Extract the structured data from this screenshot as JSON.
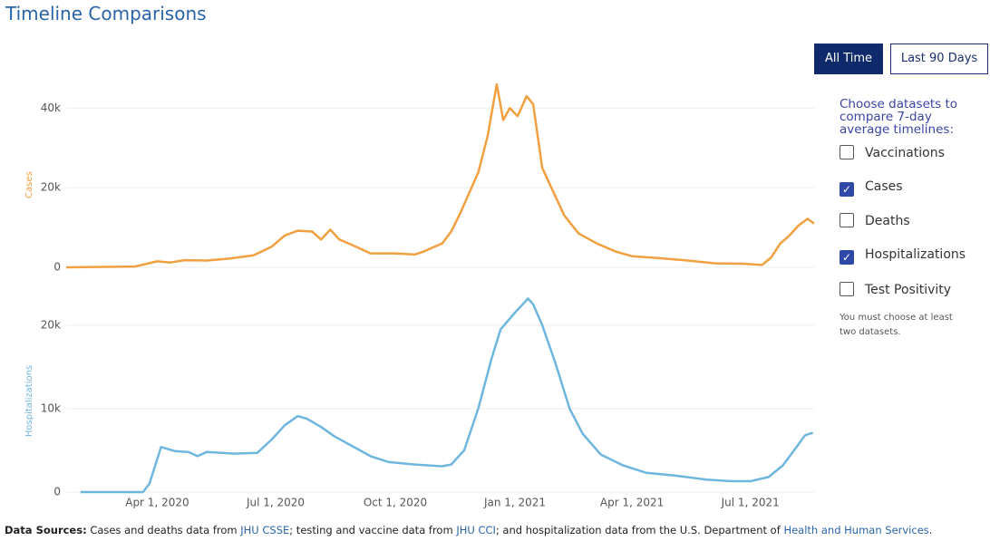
{
  "header": {
    "title": "Timeline Comparisons"
  },
  "buttons": [
    {
      "label": "All Time",
      "active": true
    },
    {
      "label": "Last 90 Days",
      "active": false
    }
  ],
  "panel": {
    "prompt": "Choose datasets to compare 7-day average timelines:",
    "options": [
      {
        "label": "Vaccinations",
        "checked": false
      },
      {
        "label": "Cases",
        "checked": true
      },
      {
        "label": "Deaths",
        "checked": false
      },
      {
        "label": "Hospitalizations",
        "checked": true
      },
      {
        "label": "Test Positivity",
        "checked": false
      }
    ],
    "note": "You must choose at least two datasets."
  },
  "footer": {
    "label": "Data Sources:",
    "parts": [
      {
        "text": " Cases and deaths data from ",
        "link": false
      },
      {
        "text": "JHU CSSE",
        "link": true
      },
      {
        "text": "; testing and vaccine data from ",
        "link": false
      },
      {
        "text": "JHU CCI",
        "link": true
      },
      {
        "text": "; and hospitalization data from the U.S. Department of ",
        "link": false
      },
      {
        "text": "Health and Human Services",
        "link": true
      },
      {
        "text": ".",
        "link": false
      }
    ]
  },
  "chart_data": [
    {
      "type": "line",
      "y_label": "Cases",
      "color": "#f0a040",
      "grid": true,
      "xlim": [
        "2020-01-22",
        "2021-08-19"
      ],
      "ylim": [
        0,
        46000
      ],
      "yticks": [
        0,
        {
          "value": 20000,
          "label": "20k"
        },
        {
          "value": 40000,
          "label": "40k"
        }
      ],
      "x": [
        "2020-01-22",
        "2020-03-15",
        "2020-04-01",
        "2020-04-11",
        "2020-04-22",
        "2020-05-09",
        "2020-05-27",
        "2020-06-14",
        "2020-06-28",
        "2020-07-08",
        "2020-07-18",
        "2020-07-29",
        "2020-08-05",
        "2020-08-12",
        "2020-08-19",
        "2020-09-02",
        "2020-09-12",
        "2020-10-01",
        "2020-10-16",
        "2020-10-23",
        "2020-10-30",
        "2020-11-06",
        "2020-11-13",
        "2020-11-20",
        "2020-12-04",
        "2020-12-11",
        "2020-12-18",
        "2020-12-23",
        "2020-12-28",
        "2021-01-03",
        "2021-01-10",
        "2021-01-15",
        "2021-01-22",
        "2021-01-29",
        "2021-02-08",
        "2021-02-19",
        "2021-03-05",
        "2021-03-19",
        "2021-04-01",
        "2021-04-22",
        "2021-05-14",
        "2021-06-04",
        "2021-06-25",
        "2021-07-10",
        "2021-07-17",
        "2021-07-24",
        "2021-07-31",
        "2021-08-07",
        "2021-08-14",
        "2021-08-19"
      ],
      "series": [
        {
          "name": "Cases",
          "values": [
            0,
            200,
            1500,
            1200,
            1800,
            1700,
            2200,
            3000,
            5200,
            8000,
            9200,
            9000,
            7000,
            9500,
            7000,
            5000,
            3500,
            3500,
            3200,
            4000,
            5000,
            6000,
            9000,
            13600,
            24000,
            33000,
            46000,
            37000,
            40000,
            38000,
            43000,
            41000,
            25000,
            20000,
            13000,
            8500,
            6000,
            4000,
            2800,
            2300,
            1700,
            1000,
            900,
            600,
            2500,
            6000,
            8000,
            10500,
            12200,
            11000
          ]
        }
      ]
    },
    {
      "type": "line",
      "y_label": "Hospitalizations",
      "color": "#6fb6de",
      "grid": true,
      "xlim": [
        "2020-01-22",
        "2021-08-19"
      ],
      "ylim": [
        0,
        24000
      ],
      "yticks": [
        0,
        {
          "value": 10000,
          "label": "10k"
        },
        {
          "value": 20000,
          "label": "20k"
        }
      ],
      "xticks": [
        {
          "value": "2020-04-01",
          "label": "Apr 1, 2020"
        },
        {
          "value": "2020-07-01",
          "label": "Jul 1, 2020"
        },
        {
          "value": "2020-10-01",
          "label": "Oct 1, 2020"
        },
        {
          "value": "2021-01-01",
          "label": "Jan 1, 2021"
        },
        {
          "value": "2021-04-01",
          "label": "Apr 1, 2021"
        },
        {
          "value": "2021-07-01",
          "label": "Jul 1, 2021"
        }
      ],
      "x": [
        "2020-02-02",
        "2020-03-21",
        "2020-03-26",
        "2020-04-04",
        "2020-04-15",
        "2020-04-25",
        "2020-05-02",
        "2020-05-09",
        "2020-05-30",
        "2020-06-17",
        "2020-06-28",
        "2020-07-08",
        "2020-07-18",
        "2020-07-25",
        "2020-08-05",
        "2020-08-15",
        "2020-08-29",
        "2020-09-12",
        "2020-09-26",
        "2020-10-16",
        "2020-11-06",
        "2020-11-13",
        "2020-11-23",
        "2020-12-04",
        "2020-12-14",
        "2020-12-21",
        "2021-01-01",
        "2021-01-10",
        "2021-01-11",
        "2021-01-15",
        "2021-01-22",
        "2021-02-01",
        "2021-02-12",
        "2021-02-22",
        "2021-03-08",
        "2021-03-25",
        "2021-04-12",
        "2021-05-03",
        "2021-05-28",
        "2021-06-17",
        "2021-07-01",
        "2021-07-15",
        "2021-07-26",
        "2021-08-05",
        "2021-08-12",
        "2021-08-18"
      ],
      "series": [
        {
          "name": "Hospitalizations",
          "values": [
            0,
            0,
            1000,
            5400,
            4900,
            4800,
            4300,
            4800,
            4600,
            4700,
            6300,
            8000,
            9100,
            8800,
            7800,
            6700,
            5500,
            4300,
            3600,
            3300,
            3100,
            3300,
            5000,
            10100,
            16000,
            19500,
            21500,
            23000,
            23200,
            22500,
            20000,
            15500,
            10000,
            7000,
            4500,
            3200,
            2300,
            2000,
            1500,
            1300,
            1300,
            1800,
            3200,
            5300,
            6800,
            7100
          ]
        }
      ]
    }
  ]
}
